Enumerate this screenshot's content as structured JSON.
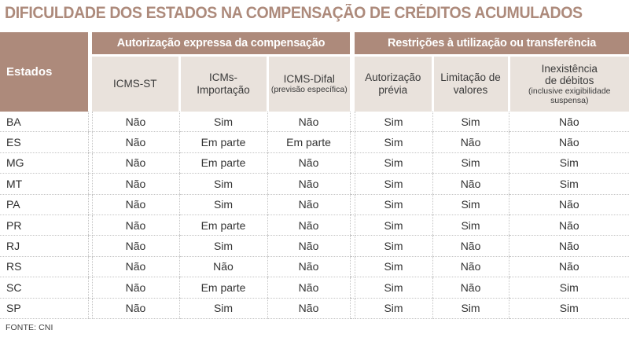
{
  "title": "DIFICULDADE DOS ESTADOS NA COMPENSAÇÃO DE CRÉDITOS ACUMULADOS",
  "source": "FONTE: CNI",
  "colors": {
    "header_brown": "#ad8a7b",
    "subheader_beige": "#e9e2dc",
    "title_text": "#ad8a7b",
    "body_text": "#333333",
    "dotted_border": "#c4c4c4"
  },
  "chart_data": {
    "type": "table",
    "title": "DIFICULDADE DOS ESTADOS NA COMPENSAÇÃO DE CRÉDITOS ACUMULADOS",
    "row_header": "Estados",
    "column_groups": [
      {
        "label": "Autorização expressa da compensação",
        "columns": [
          {
            "label": "ICMS-ST",
            "sublabel": ""
          },
          {
            "label": "ICMs-\nImportação",
            "sublabel": ""
          },
          {
            "label": "ICMS-Difal",
            "sublabel": "(previsão específica)"
          }
        ]
      },
      {
        "label": "Restrições à utilização ou transferência",
        "columns": [
          {
            "label": "Autorização\nprévia",
            "sublabel": ""
          },
          {
            "label": "Limitação de\nvalores",
            "sublabel": ""
          },
          {
            "label": "Inexistência\nde débitos",
            "sublabel": "(inclusive exigibilidade\nsuspensa)"
          }
        ]
      }
    ],
    "rows": [
      {
        "state": "BA",
        "values": [
          "Não",
          "Sim",
          "Não",
          "Sim",
          "Sim",
          "Não"
        ]
      },
      {
        "state": "ES",
        "values": [
          "Não",
          "Em parte",
          "Em parte",
          "Sim",
          "Não",
          "Não"
        ]
      },
      {
        "state": "MG",
        "values": [
          "Não",
          "Em parte",
          "Não",
          "Sim",
          "Sim",
          "Sim"
        ]
      },
      {
        "state": "MT",
        "values": [
          "Não",
          "Sim",
          "Não",
          "Sim",
          "Não",
          "Sim"
        ]
      },
      {
        "state": "PA",
        "values": [
          "Não",
          "Sim",
          "Não",
          "Sim",
          "Sim",
          "Não"
        ]
      },
      {
        "state": "PR",
        "values": [
          "Não",
          "Em parte",
          "Não",
          "Sim",
          "Sim",
          "Não"
        ]
      },
      {
        "state": "RJ",
        "values": [
          "Não",
          "Sim",
          "Não",
          "Sim",
          "Não",
          "Não"
        ]
      },
      {
        "state": "RS",
        "values": [
          "Não",
          "Não",
          "Não",
          "Sim",
          "Não",
          "Não"
        ]
      },
      {
        "state": "SC",
        "values": [
          "Não",
          "Em parte",
          "Não",
          "Sim",
          "Não",
          "Sim"
        ]
      },
      {
        "state": "SP",
        "values": [
          "Não",
          "Sim",
          "Não",
          "Sim",
          "Sim",
          "Sim"
        ]
      }
    ],
    "source": "FONTE: CNI"
  }
}
